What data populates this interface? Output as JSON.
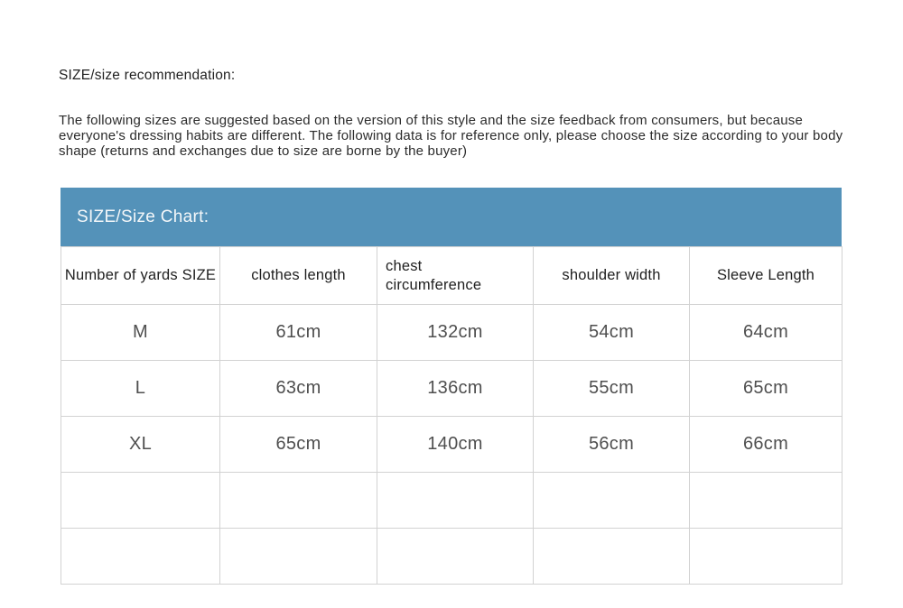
{
  "header": {
    "title": "SIZE/size recommendation:",
    "description": "The following sizes are suggested based on the version of this style and the size feedback from consumers, but because everyone's dressing habits are different. The following data is for reference only, please choose the size according to your body shape (returns and exchanges due to size are borne by the buyer)"
  },
  "size_chart": {
    "banner_label": "SIZE/Size Chart:",
    "banner_color": "#5492b9",
    "columns": [
      "Number of yards SIZE",
      "clothes length",
      "chest\ncircumference",
      "shoulder width",
      "Sleeve Length"
    ],
    "rows": [
      [
        "M",
        "61cm",
        "132cm",
        "54cm",
        "64cm"
      ],
      [
        "L",
        "63cm",
        "136cm",
        "55cm",
        "65cm"
      ],
      [
        "XL",
        "65cm",
        "140cm",
        "56cm",
        "66cm"
      ],
      [
        "",
        "",
        "",
        "",
        ""
      ],
      [
        "",
        "",
        "",
        "",
        ""
      ]
    ]
  }
}
